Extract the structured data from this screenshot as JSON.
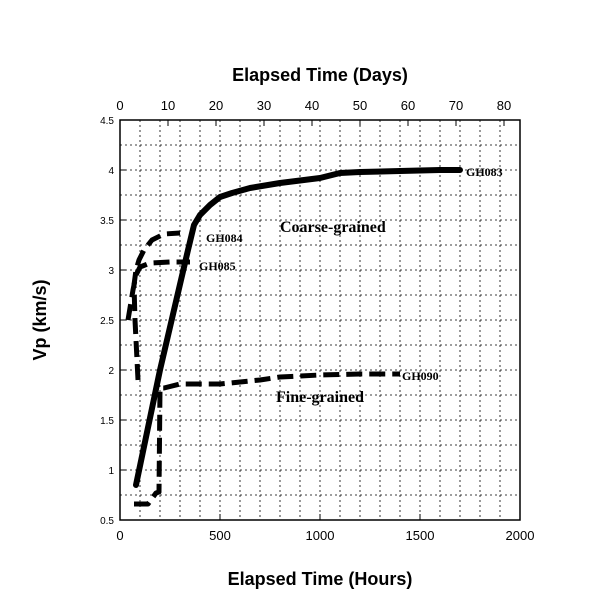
{
  "chart_data": {
    "type": "line",
    "xlabel": "Elapsed Time (Hours)",
    "x2label": "Elapsed Time (Days)",
    "ylabel": "Vp (km/s)",
    "xlim": [
      0,
      2000
    ],
    "x2lim": [
      0,
      83.333
    ],
    "ylim": [
      0.5,
      4.5
    ],
    "xticks": [
      "0",
      "500",
      "1000",
      "1500",
      "2000"
    ],
    "x2ticks": [
      "0",
      "10",
      "20",
      "30",
      "40",
      "50",
      "60",
      "70",
      "80"
    ],
    "yticks": [
      "0.5",
      "1",
      "1.5",
      "2",
      "2.5",
      "3",
      "3.5",
      "4",
      "4.5"
    ],
    "grid": true,
    "series": [
      {
        "name": "GH083",
        "style": "solid",
        "x": [
          80,
          200,
          340,
          370,
          400,
          450,
          500,
          560,
          650,
          800,
          1000,
          1100,
          1200,
          1400,
          1600,
          1700
        ],
        "y": [
          0.85,
          2.0,
          3.2,
          3.45,
          3.55,
          3.65,
          3.73,
          3.77,
          3.82,
          3.87,
          3.92,
          3.97,
          3.98,
          3.99,
          4.0,
          4.0
        ]
      },
      {
        "name": "GH084",
        "style": "dashed",
        "x": [
          90,
          75,
          70,
          80,
          95,
          120,
          160,
          220,
          300
        ],
        "y": [
          1.9,
          2.5,
          2.85,
          3.0,
          3.1,
          3.2,
          3.3,
          3.36,
          3.37
        ]
      },
      {
        "name": "GH085",
        "style": "dashed",
        "x": [
          40,
          65,
          80,
          100,
          150,
          250,
          350
        ],
        "y": [
          2.5,
          2.8,
          2.95,
          3.03,
          3.07,
          3.08,
          3.08
        ]
      },
      {
        "name": "GH090",
        "style": "dashed",
        "x": [
          70,
          140,
          180,
          195,
          200,
          220,
          300,
          500,
          700,
          800,
          1000,
          1200,
          1400
        ],
        "y": [
          0.66,
          0.66,
          0.77,
          0.78,
          1.82,
          1.82,
          1.86,
          1.86,
          1.9,
          1.93,
          1.95,
          1.96,
          1.96
        ]
      }
    ],
    "annotations": [
      "Coarse-grained",
      "Fine-grained"
    ]
  }
}
